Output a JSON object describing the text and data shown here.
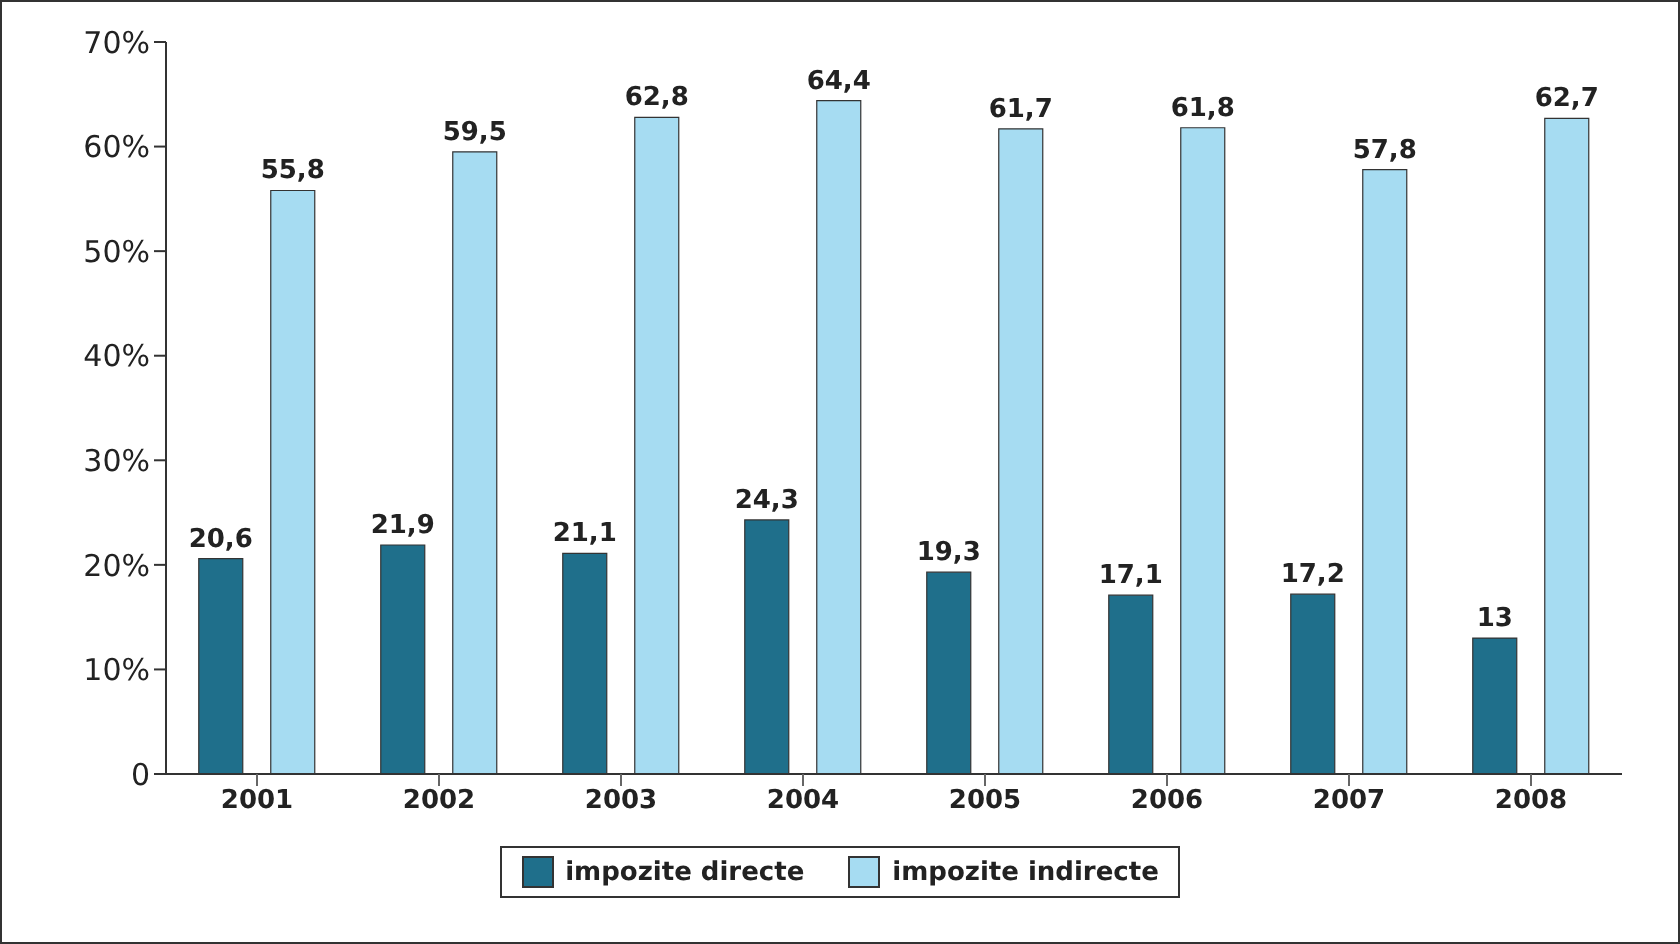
{
  "chart_data": {
    "type": "bar",
    "categories": [
      "2001",
      "2002",
      "2003",
      "2004",
      "2005",
      "2006",
      "2007",
      "2008"
    ],
    "series": [
      {
        "name": "impozite directe",
        "color": "#1f6f8b",
        "values": [
          20.6,
          21.9,
          21.1,
          24.3,
          19.3,
          17.1,
          17.2,
          13
        ],
        "value_labels": [
          "20,6",
          "21,9",
          "21,1",
          "24,3",
          "19,3",
          "17,1",
          "17,2",
          "13"
        ]
      },
      {
        "name": "impozite indirecte",
        "color": "#a6dcf2",
        "values": [
          55.8,
          59.5,
          62.8,
          64.4,
          61.7,
          61.8,
          57.8,
          62.7
        ],
        "value_labels": [
          "55,8",
          "59,5",
          "62,8",
          "64,4",
          "61,7",
          "61,8",
          "57,8",
          "62,7"
        ]
      }
    ],
    "ylim": [
      0,
      70
    ],
    "yticks": [
      {
        "value": 0,
        "label": "0"
      },
      {
        "value": 10,
        "label": "10%"
      },
      {
        "value": 20,
        "label": "20%"
      },
      {
        "value": 30,
        "label": "30%"
      },
      {
        "value": 40,
        "label": "40%"
      },
      {
        "value": 50,
        "label": "50%"
      },
      {
        "value": 60,
        "label": "60%"
      },
      {
        "value": 70,
        "label": "70%"
      }
    ],
    "grid": false,
    "legend": "bottom"
  }
}
